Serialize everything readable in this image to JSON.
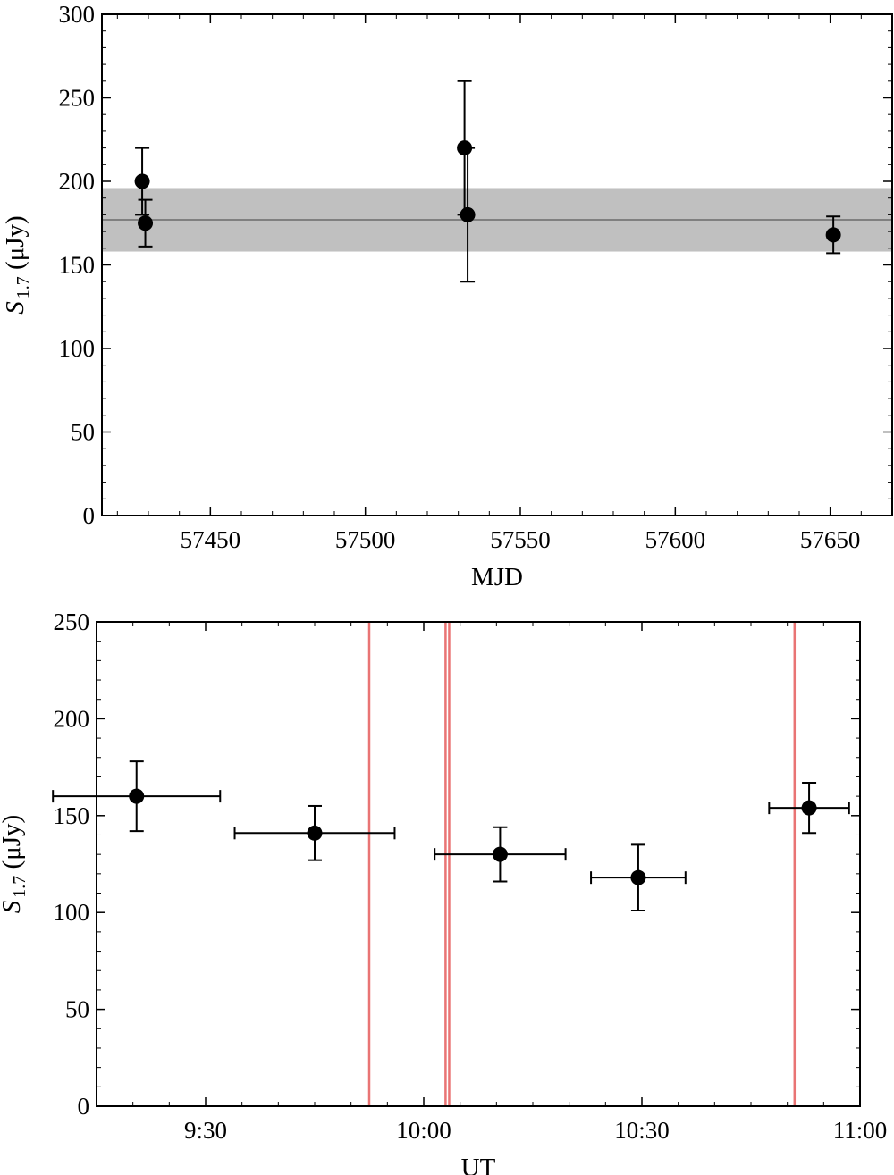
{
  "chart_data": [
    {
      "type": "scatter",
      "xlabel": "MJD",
      "ylabel": {
        "symbol": "S",
        "subscript": "1.7",
        "unit": " (μJy)"
      },
      "xlim": [
        57415,
        57670
      ],
      "ylim": [
        0,
        300
      ],
      "xticks": [
        57450,
        57500,
        57550,
        57600,
        57650
      ],
      "xtick_labels": [
        "57450",
        "57500",
        "57550",
        "57600",
        "57650"
      ],
      "yticks": [
        0,
        50,
        100,
        150,
        200,
        250,
        300
      ],
      "ytick_labels": [
        "0",
        "50",
        "100",
        "150",
        "200",
        "250",
        "300"
      ],
      "mean_line": 177,
      "mean_band": [
        158,
        196
      ],
      "points": [
        {
          "x": 57428,
          "y": 200,
          "yerr": 20
        },
        {
          "x": 57429,
          "y": 175,
          "yerr": 14
        },
        {
          "x": 57532,
          "y": 220,
          "yerr": 40
        },
        {
          "x": 57533,
          "y": 180,
          "yerr": 40
        },
        {
          "x": 57651,
          "y": 168,
          "yerr": 11
        }
      ],
      "colors": {
        "points": "#000000",
        "mean_line": "#808080",
        "band": "#c0c0c0"
      }
    },
    {
      "type": "scatter",
      "xlabel": "UT",
      "ylabel": {
        "symbol": "S",
        "subscript": "1.7",
        "unit": " (μJy)"
      },
      "xlim_minutes_ut": [
        555,
        660
      ],
      "ylim": [
        0,
        250
      ],
      "xticks_minutes_ut": [
        570,
        600,
        630,
        660
      ],
      "xtick_labels": [
        "9:30",
        "10:00",
        "10:30",
        "11:00"
      ],
      "yticks": [
        0,
        50,
        100,
        150,
        200,
        250
      ],
      "ytick_labels": [
        "0",
        "50",
        "100",
        "150",
        "200",
        "250"
      ],
      "points": [
        {
          "x": 560.5,
          "xerr": 11.5,
          "y": 160,
          "yerr": 18
        },
        {
          "x": 585.0,
          "xerr": 11.0,
          "y": 141,
          "yerr": 14
        },
        {
          "x": 610.5,
          "xerr": 9.0,
          "y": 130,
          "yerr": 14
        },
        {
          "x": 629.5,
          "xerr": 6.5,
          "y": 118,
          "yerr": 17
        },
        {
          "x": 653.0,
          "xerr": 5.5,
          "y": 154,
          "yerr": 13
        }
      ],
      "vlines_minutes_ut": [
        592.5,
        603.0,
        603.5,
        651.0
      ],
      "colors": {
        "points": "#000000",
        "vlines": "#e97474"
      }
    }
  ]
}
